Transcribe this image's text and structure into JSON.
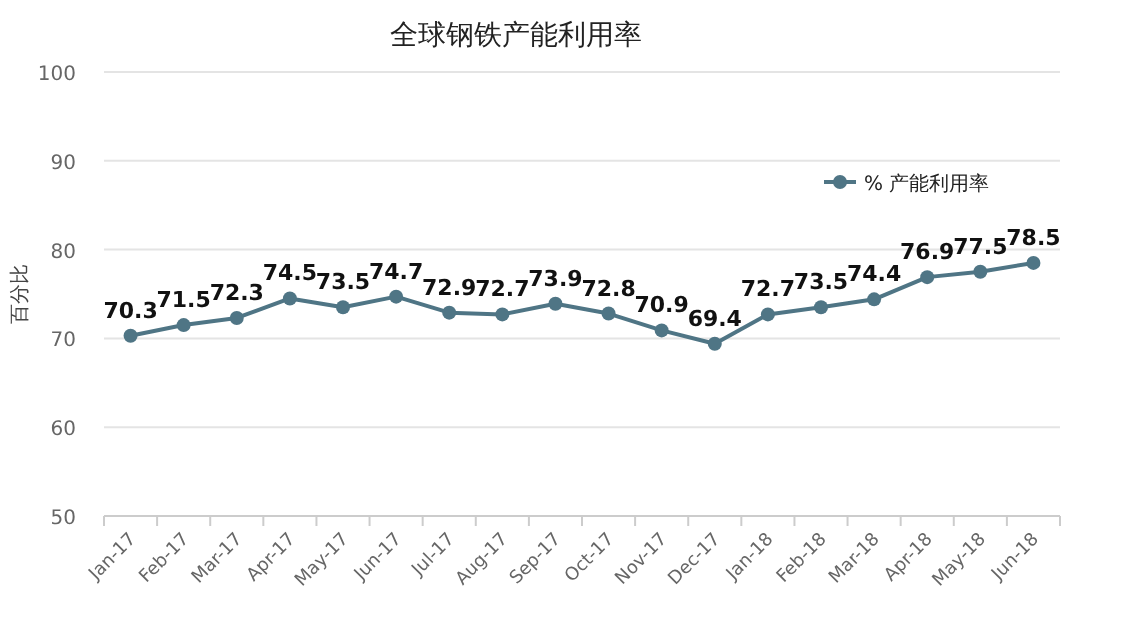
{
  "chart_data": {
    "type": "line",
    "title": "全球钢铁产能利用率",
    "ylabel": "百分比",
    "categories": [
      "Jan-17",
      "Feb-17",
      "Mar-17",
      "Apr-17",
      "May-17",
      "Jun-17",
      "Jul-17",
      "Aug-17",
      "Sep-17",
      "Oct-17",
      "Nov-17",
      "Dec-17",
      "Jan-18",
      "Feb-18",
      "Mar-18",
      "Apr-18",
      "May-18",
      "Jun-18"
    ],
    "series": [
      {
        "name": "% 产能利用率",
        "color": "#4f7585",
        "values": [
          70.3,
          71.5,
          72.3,
          74.5,
          73.5,
          74.7,
          72.9,
          72.7,
          73.9,
          72.8,
          70.9,
          69.4,
          72.7,
          73.5,
          74.4,
          76.9,
          77.5,
          78.5
        ]
      }
    ],
    "ylim": [
      50,
      100
    ],
    "yticks": [
      50,
      60,
      70,
      80,
      90,
      100
    ],
    "grid": "y",
    "legend": "right",
    "marker": "circle",
    "line_style": "solid",
    "data_labels": true
  }
}
